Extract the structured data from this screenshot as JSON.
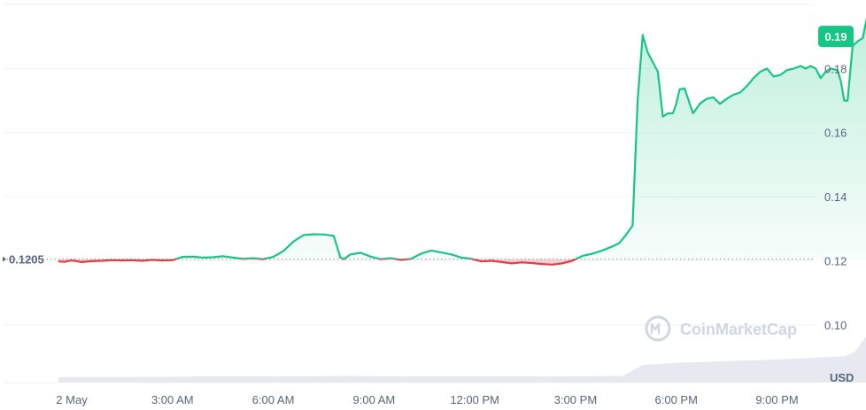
{
  "chart_data": {
    "type": "line",
    "currency_label": "USD",
    "reference_value": 0.1205,
    "reference_label": "0.1205",
    "current_value": 0.19,
    "current_label": "0.19",
    "watermark": "CoinMarketCap",
    "ylim": [
      0.082,
      0.2
    ],
    "xlim": [
      -0.4,
      22.3
    ],
    "y_ticks": [
      {
        "value": 0.1,
        "label": "0.10"
      },
      {
        "value": 0.12,
        "label": "0.12"
      },
      {
        "value": 0.14,
        "label": "0.14"
      },
      {
        "value": 0.16,
        "label": "0.16"
      },
      {
        "value": 0.18,
        "label": "0.18"
      }
    ],
    "x_ticks": [
      {
        "value": 0,
        "label": "2 May"
      },
      {
        "value": 3,
        "label": "3:00 AM"
      },
      {
        "value": 6,
        "label": "6:00 AM"
      },
      {
        "value": 9,
        "label": "9:00 AM"
      },
      {
        "value": 12,
        "label": "12:00 PM"
      },
      {
        "value": 15,
        "label": "3:00 PM"
      },
      {
        "value": 18,
        "label": "6:00 PM"
      },
      {
        "value": 21,
        "label": "9:00 PM"
      }
    ],
    "series": [
      {
        "points": [
          [
            -0.4,
            0.1198
          ],
          [
            -0.2,
            0.1197
          ],
          [
            0,
            0.1201
          ],
          [
            0.3,
            0.1196
          ],
          [
            0.6,
            0.1199
          ],
          [
            0.9,
            0.12
          ],
          [
            1.2,
            0.1202
          ],
          [
            1.5,
            0.1201
          ],
          [
            1.8,
            0.1202
          ],
          [
            2.1,
            0.12
          ],
          [
            2.4,
            0.1203
          ],
          [
            2.7,
            0.1201
          ],
          [
            3.0,
            0.1202
          ],
          [
            3.3,
            0.1212
          ],
          [
            3.6,
            0.1213
          ],
          [
            3.9,
            0.121
          ],
          [
            4.2,
            0.1211
          ],
          [
            4.5,
            0.1214
          ],
          [
            4.8,
            0.121
          ],
          [
            5.1,
            0.1206
          ],
          [
            5.4,
            0.1208
          ],
          [
            5.7,
            0.1205
          ],
          [
            6.0,
            0.1212
          ],
          [
            6.3,
            0.123
          ],
          [
            6.6,
            0.126
          ],
          [
            6.9,
            0.128
          ],
          [
            7.2,
            0.1283
          ],
          [
            7.5,
            0.1282
          ],
          [
            7.8,
            0.1278
          ],
          [
            8.0,
            0.121
          ],
          [
            8.1,
            0.1205
          ],
          [
            8.3,
            0.122
          ],
          [
            8.6,
            0.1225
          ],
          [
            8.9,
            0.1213
          ],
          [
            9.2,
            0.1205
          ],
          [
            9.5,
            0.1208
          ],
          [
            9.8,
            0.1203
          ],
          [
            10.1,
            0.1206
          ],
          [
            10.4,
            0.1222
          ],
          [
            10.7,
            0.1232
          ],
          [
            11.0,
            0.1226
          ],
          [
            11.3,
            0.122
          ],
          [
            11.6,
            0.121
          ],
          [
            11.9,
            0.1206
          ],
          [
            12.2,
            0.1198
          ],
          [
            12.5,
            0.12
          ],
          [
            12.8,
            0.1196
          ],
          [
            13.1,
            0.1192
          ],
          [
            13.4,
            0.1195
          ],
          [
            13.7,
            0.1193
          ],
          [
            14.0,
            0.119
          ],
          [
            14.3,
            0.1188
          ],
          [
            14.6,
            0.1192
          ],
          [
            14.9,
            0.12
          ],
          [
            15.2,
            0.1215
          ],
          [
            15.5,
            0.1222
          ],
          [
            15.8,
            0.1232
          ],
          [
            16.1,
            0.1245
          ],
          [
            16.3,
            0.1255
          ],
          [
            16.5,
            0.128
          ],
          [
            16.7,
            0.131
          ],
          [
            16.85,
            0.17
          ],
          [
            17.0,
            0.1905
          ],
          [
            17.15,
            0.185
          ],
          [
            17.3,
            0.182
          ],
          [
            17.45,
            0.179
          ],
          [
            17.6,
            0.165
          ],
          [
            17.75,
            0.166
          ],
          [
            17.9,
            0.166
          ],
          [
            18.0,
            0.169
          ],
          [
            18.1,
            0.1735
          ],
          [
            18.25,
            0.1738
          ],
          [
            18.4,
            0.169
          ],
          [
            18.5,
            0.166
          ],
          [
            18.7,
            0.169
          ],
          [
            18.9,
            0.1705
          ],
          [
            19.1,
            0.171
          ],
          [
            19.3,
            0.169
          ],
          [
            19.5,
            0.1705
          ],
          [
            19.7,
            0.1718
          ],
          [
            19.9,
            0.1725
          ],
          [
            20.1,
            0.1745
          ],
          [
            20.3,
            0.177
          ],
          [
            20.5,
            0.179
          ],
          [
            20.7,
            0.18
          ],
          [
            20.9,
            0.1775
          ],
          [
            21.1,
            0.178
          ],
          [
            21.3,
            0.1795
          ],
          [
            21.5,
            0.18
          ],
          [
            21.7,
            0.1808
          ],
          [
            21.85,
            0.18
          ],
          [
            22.0,
            0.1808
          ],
          [
            22.15,
            0.18
          ],
          [
            22.3,
            0.177
          ],
          [
            22.45,
            0.179
          ],
          [
            22.6,
            0.18
          ],
          [
            22.8,
            0.1795
          ],
          [
            22.9,
            0.176
          ],
          [
            23.0,
            0.17
          ],
          [
            23.1,
            0.17
          ],
          [
            23.25,
            0.187
          ],
          [
            23.4,
            0.1885
          ],
          [
            23.55,
            0.1895
          ],
          [
            23.7,
            0.197
          ],
          [
            23.9,
            0.19
          ]
        ]
      }
    ],
    "colors": {
      "up": "#16c784",
      "down": "#ea3943",
      "grid": "#eff2f5",
      "axis_text": "#58667e",
      "volume": "#e6e9ef"
    },
    "volume": {
      "points": [
        [
          -0.4,
          0.1
        ],
        [
          2.0,
          0.1
        ],
        [
          4.0,
          0.11
        ],
        [
          6.0,
          0.11
        ],
        [
          8.0,
          0.12
        ],
        [
          10.0,
          0.11
        ],
        [
          12.0,
          0.11
        ],
        [
          14.0,
          0.11
        ],
        [
          16.4,
          0.12
        ],
        [
          17.0,
          0.32
        ],
        [
          18.0,
          0.36
        ],
        [
          19.0,
          0.38
        ],
        [
          20.0,
          0.4
        ],
        [
          21.0,
          0.42
        ],
        [
          22.0,
          0.45
        ],
        [
          23.0,
          0.48
        ],
        [
          23.3,
          0.55
        ],
        [
          23.6,
          0.8
        ],
        [
          23.9,
          1.0
        ]
      ]
    }
  }
}
